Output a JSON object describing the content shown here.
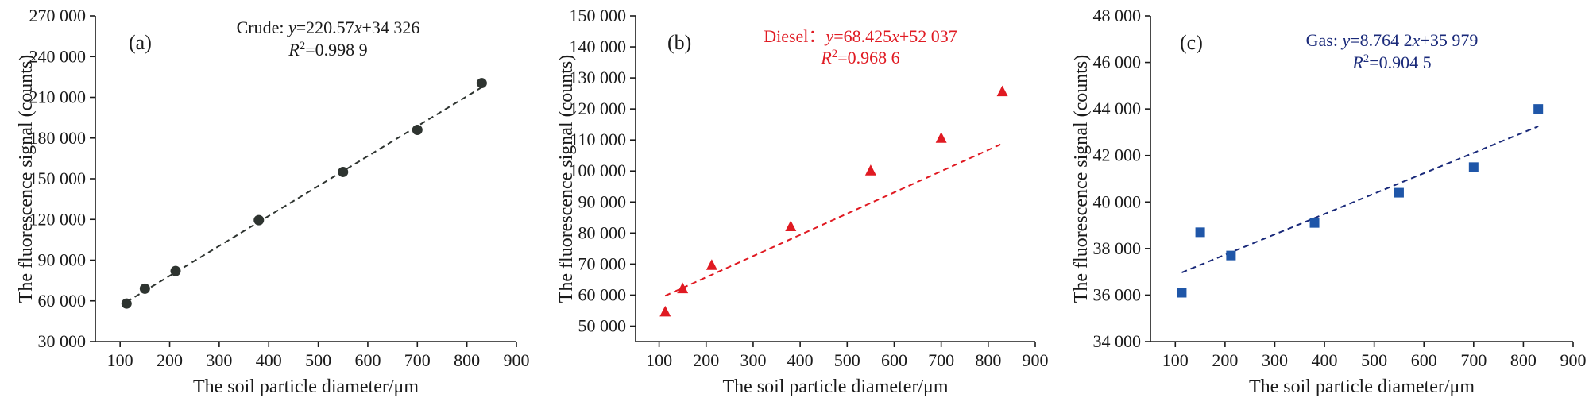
{
  "chart_data": [
    {
      "type": "scatter",
      "panel_label": "(a)",
      "xlabel": "The soil particle diameter/μm",
      "ylabel": "The fluorescence signal (counts)",
      "xlim": [
        50,
        900
      ],
      "ylim": [
        30000,
        270000
      ],
      "xticks": [
        100,
        200,
        300,
        400,
        500,
        600,
        700,
        800,
        900
      ],
      "yticks": [
        30000,
        60000,
        90000,
        120000,
        150000,
        180000,
        210000,
        240000,
        270000
      ],
      "xtick_labels": [
        "100",
        "200",
        "300",
        "400",
        "500",
        "600",
        "700",
        "800",
        "900"
      ],
      "ytick_labels": [
        "30 000",
        "60 000",
        "90 000",
        "120 000",
        "150 000",
        "180 000",
        "210 000",
        "240 000",
        "270 000"
      ],
      "color": "#2e3430",
      "marker": "circle",
      "series": [
        {
          "name": "Crude",
          "x": [
            113,
            150,
            212,
            380,
            550,
            700,
            830
          ],
          "y": [
            58000,
            69000,
            82000,
            119500,
            155000,
            186000,
            220500
          ]
        }
      ],
      "fit": {
        "slope": 220.57,
        "intercept": 34326,
        "x_range": [
          113,
          830
        ]
      },
      "equation": {
        "name": "Crude: ",
        "y": "y",
        "rest": "=220.57",
        "x": "x",
        "tail": "+34 326"
      },
      "r2": {
        "r": "R",
        "sup": "2",
        "value": "=0.998 9"
      }
    },
    {
      "type": "scatter",
      "panel_label": "(b)",
      "xlabel": "The soil particle diameter/μm",
      "ylabel": "The fluorescence signal (counts)",
      "xlim": [
        50,
        900
      ],
      "ylim": [
        45000,
        150000
      ],
      "xticks": [
        100,
        200,
        300,
        400,
        500,
        600,
        700,
        800,
        900
      ],
      "yticks": [
        50000,
        60000,
        70000,
        80000,
        90000,
        100000,
        110000,
        120000,
        130000,
        140000,
        150000
      ],
      "xtick_labels": [
        "100",
        "200",
        "300",
        "400",
        "500",
        "600",
        "700",
        "800",
        "900"
      ],
      "ytick_labels": [
        "50 000",
        "60 000",
        "70 000",
        "80 000",
        "90 000",
        "100 000",
        "110 000",
        "120 000",
        "130 000",
        "140 000",
        "150 000"
      ],
      "color": "#e01a22",
      "marker": "triangle",
      "series": [
        {
          "name": "Diesel",
          "x": [
            113,
            150,
            212,
            380,
            550,
            700,
            830
          ],
          "y": [
            54500,
            62000,
            69500,
            82000,
            100000,
            110500,
            125500
          ]
        }
      ],
      "fit": {
        "slope": 68.425,
        "intercept": 52037,
        "x_range": [
          113,
          830
        ]
      },
      "equation": {
        "name": "Diesel：",
        "y": "y",
        "rest": "=68.425",
        "x": "x",
        "tail": "+52 037"
      },
      "r2": {
        "r": "R",
        "sup": "2",
        "value": "=0.968 6"
      }
    },
    {
      "type": "scatter",
      "panel_label": "(c)",
      "xlabel": "The soil particle diameter/μm",
      "ylabel": "The fluorescence signal (counts)",
      "xlim": [
        50,
        900
      ],
      "ylim": [
        34000,
        48000
      ],
      "xticks": [
        100,
        200,
        300,
        400,
        500,
        600,
        700,
        800,
        900
      ],
      "yticks": [
        34000,
        36000,
        38000,
        40000,
        42000,
        44000,
        46000,
        48000
      ],
      "xtick_labels": [
        "100",
        "200",
        "300",
        "400",
        "500",
        "600",
        "700",
        "800",
        "900"
      ],
      "ytick_labels": [
        "34 000",
        "36 000",
        "38 000",
        "40 000",
        "42 000",
        "44 000",
        "46 000",
        "48 000"
      ],
      "color": "#1f56a8",
      "fit_color": "#1a2a7a",
      "marker": "square",
      "series": [
        {
          "name": "Gas",
          "x": [
            113,
            150,
            212,
            380,
            550,
            700,
            830
          ],
          "y": [
            36100,
            38700,
            37700,
            39100,
            40400,
            41500,
            44000
          ]
        }
      ],
      "fit": {
        "slope": 8.7642,
        "intercept": 35979,
        "x_range": [
          113,
          830
        ]
      },
      "equation": {
        "name": "Gas: ",
        "y": "y",
        "rest": "=8.764 2",
        "x": "x",
        "tail": "+35 979"
      },
      "r2": {
        "r": "R",
        "sup": "2",
        "value": "=0.904 5"
      }
    }
  ]
}
